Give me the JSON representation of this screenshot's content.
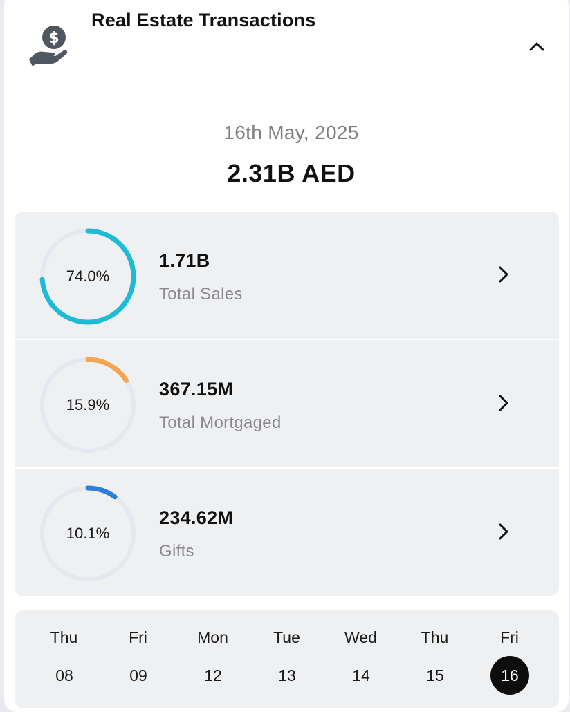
{
  "header": {
    "title": "Real Estate Transactions",
    "icon": "money-hand-icon",
    "collapse_icon": "chevron-up-icon"
  },
  "summary": {
    "date": "16th May, 2025",
    "total": "2.31B AED"
  },
  "breakdown": [
    {
      "percent_label": "74.0%",
      "percent": 74.0,
      "value": "1.71B",
      "label": "Total Sales",
      "color": "#1fbad6"
    },
    {
      "percent_label": "15.9%",
      "percent": 15.9,
      "value": "367.15M",
      "label": "Total Mortgaged",
      "color": "#f5a552"
    },
    {
      "percent_label": "10.1%",
      "percent": 10.1,
      "value": "234.62M",
      "label": "Gifts",
      "color": "#2f7fd6"
    }
  ],
  "colors": {
    "ring_track": "#e6e8ef",
    "selected_day": "#0d0d0d"
  },
  "dates": [
    {
      "day": "Thu",
      "num": "08",
      "selected": false
    },
    {
      "day": "Fri",
      "num": "09",
      "selected": false
    },
    {
      "day": "Mon",
      "num": "12",
      "selected": false
    },
    {
      "day": "Tue",
      "num": "13",
      "selected": false
    },
    {
      "day": "Wed",
      "num": "14",
      "selected": false
    },
    {
      "day": "Thu",
      "num": "15",
      "selected": false
    },
    {
      "day": "Fri",
      "num": "16",
      "selected": true
    }
  ]
}
